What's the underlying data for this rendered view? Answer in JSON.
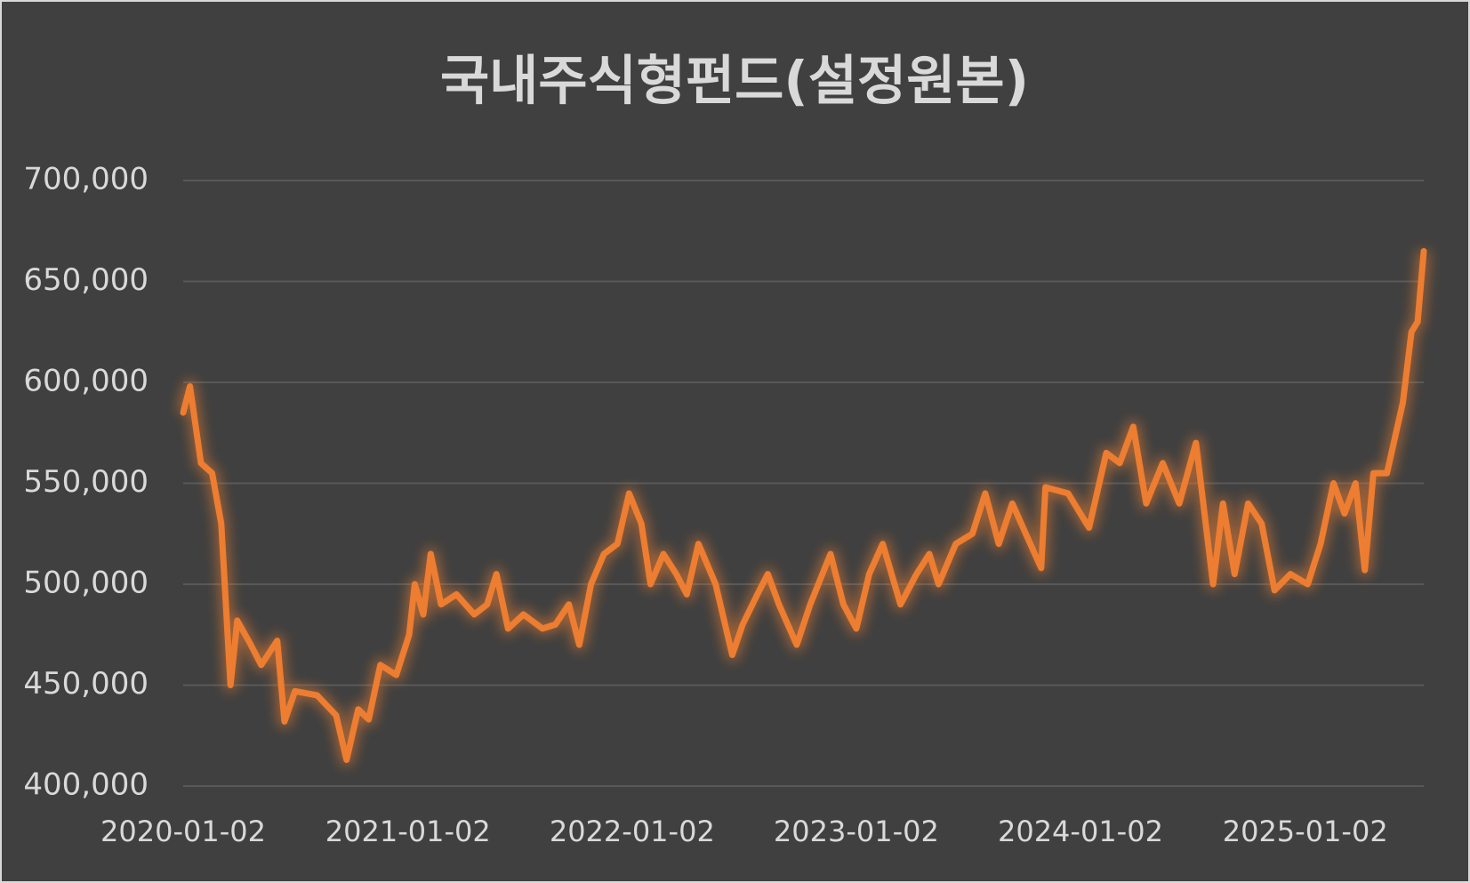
{
  "chart_data": {
    "type": "line",
    "title": "국내주식형펀드(설정원본)",
    "x": [
      "2020-01-02",
      "2020-01-13",
      "2020-01-31",
      "2020-02-18",
      "2020-03-04",
      "2020-03-19",
      "2020-03-30",
      "2020-04-21",
      "2020-05-08",
      "2020-06-03",
      "2020-06-15",
      "2020-07-02",
      "2020-08-07",
      "2020-09-07",
      "2020-09-24",
      "2020-10-13",
      "2020-10-30",
      "2020-11-18",
      "2020-12-14",
      "2021-01-04",
      "2021-01-13",
      "2021-01-27",
      "2021-02-08",
      "2021-02-25",
      "2021-03-22",
      "2021-04-20",
      "2021-05-11",
      "2021-05-26",
      "2021-06-14",
      "2021-07-09",
      "2021-08-09",
      "2021-08-30",
      "2021-09-21",
      "2021-10-08",
      "2021-10-27",
      "2021-11-17",
      "2021-12-09",
      "2021-12-28",
      "2022-01-17",
      "2022-02-01",
      "2022-02-22",
      "2022-03-15",
      "2022-04-01",
      "2022-04-20",
      "2022-05-18",
      "2022-06-14",
      "2022-07-01",
      "2022-07-25",
      "2022-08-11",
      "2022-08-29",
      "2022-09-27",
      "2022-10-19",
      "2022-11-21",
      "2022-12-12",
      "2023-01-02",
      "2023-01-23",
      "2023-02-14",
      "2023-03-15",
      "2023-04-10",
      "2023-05-01",
      "2023-05-16",
      "2023-06-13",
      "2023-07-10",
      "2023-07-31",
      "2023-08-22",
      "2023-09-13",
      "2023-10-05",
      "2023-10-30",
      "2023-11-06",
      "2023-12-13",
      "2024-01-16",
      "2024-02-13",
      "2024-03-06",
      "2024-03-28",
      "2024-04-18",
      "2024-05-15",
      "2024-06-11",
      "2024-07-08",
      "2024-08-05",
      "2024-08-21",
      "2024-09-09",
      "2024-10-01",
      "2024-10-23",
      "2024-11-13",
      "2024-12-09",
      "2025-01-06",
      "2025-01-27",
      "2025-02-17",
      "2025-03-07",
      "2025-03-25",
      "2025-04-09",
      "2025-04-23",
      "2025-05-15",
      "2025-06-10",
      "2025-06-24",
      "2025-07-04",
      "2025-07-14"
    ],
    "series": [
      {
        "color": "#ed7d31",
        "values": [
          585000,
          598000,
          560000,
          555000,
          530000,
          450000,
          482000,
          470000,
          460000,
          472000,
          432000,
          447000,
          445000,
          435000,
          413000,
          438000,
          433000,
          460000,
          455000,
          475000,
          500000,
          485000,
          515000,
          490000,
          495000,
          485000,
          490000,
          505000,
          478000,
          485000,
          478000,
          480000,
          490000,
          470000,
          500000,
          515000,
          520000,
          545000,
          530000,
          500000,
          515000,
          505000,
          495000,
          520000,
          500000,
          465000,
          480000,
          495000,
          505000,
          490000,
          470000,
          490000,
          515000,
          490000,
          478000,
          505000,
          520000,
          490000,
          505000,
          515000,
          500000,
          520000,
          525000,
          545000,
          520000,
          540000,
          525000,
          508000,
          548000,
          545000,
          528000,
          565000,
          560000,
          578000,
          540000,
          560000,
          540000,
          570000,
          500000,
          540000,
          505000,
          540000,
          530000,
          497000,
          505000,
          500000,
          520000,
          550000,
          535000,
          550000,
          507000,
          555000,
          555000,
          590000,
          625000,
          630000,
          665000
        ]
      }
    ],
    "xlim": [
      "2020-01-02",
      "2025-07-14"
    ],
    "xticks": [
      "2020-01-02",
      "2021-01-02",
      "2022-01-02",
      "2023-01-02",
      "2024-01-02",
      "2025-01-02"
    ],
    "ylim": [
      400000,
      700000
    ],
    "yticks": [
      {
        "value": 400000,
        "label": "400,000"
      },
      {
        "value": 450000,
        "label": "450,000"
      },
      {
        "value": 500000,
        "label": "500,000"
      },
      {
        "value": 550000,
        "label": "550,000"
      },
      {
        "value": 600000,
        "label": "600,000"
      },
      {
        "value": 650000,
        "label": "650,000"
      },
      {
        "value": 700000,
        "label": "700,000"
      }
    ],
    "grid": true
  }
}
